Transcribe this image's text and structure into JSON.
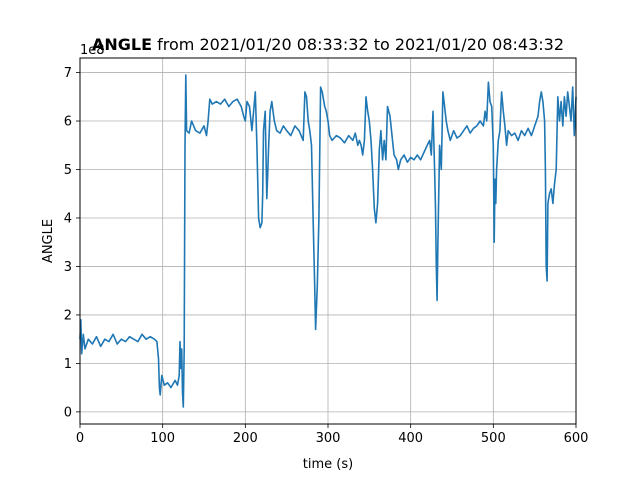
{
  "chart_data": {
    "type": "line",
    "title_bold": "ANGLE",
    "title_rest": " from 2021/01/20 08:33:32 to 2021/01/20 08:43:32",
    "xlabel": "time (s)",
    "ylabel": "ANGLE",
    "y_offset_text": "1e8",
    "xlim": [
      0,
      600
    ],
    "ylim": [
      -0.25,
      7.3
    ],
    "xticks": [
      0,
      100,
      200,
      300,
      400,
      500,
      600
    ],
    "yticks": [
      0,
      1,
      2,
      3,
      4,
      5,
      6,
      7
    ],
    "grid": true,
    "line_color": "#1f77b4",
    "series": [
      {
        "values": [
          [
            0,
            1.5
          ],
          [
            1,
            1.9
          ],
          [
            2,
            1.2
          ],
          [
            4,
            1.6
          ],
          [
            6,
            1.3
          ],
          [
            10,
            1.5
          ],
          [
            15,
            1.4
          ],
          [
            20,
            1.55
          ],
          [
            25,
            1.35
          ],
          [
            30,
            1.5
          ],
          [
            35,
            1.45
          ],
          [
            40,
            1.6
          ],
          [
            45,
            1.4
          ],
          [
            50,
            1.5
          ],
          [
            55,
            1.45
          ],
          [
            60,
            1.55
          ],
          [
            65,
            1.5
          ],
          [
            70,
            1.45
          ],
          [
            75,
            1.6
          ],
          [
            80,
            1.5
          ],
          [
            85,
            1.55
          ],
          [
            90,
            1.5
          ],
          [
            93,
            1.45
          ],
          [
            95,
            1.1
          ],
          [
            96,
            0.5
          ],
          [
            97,
            0.35
          ],
          [
            99,
            0.75
          ],
          [
            102,
            0.55
          ],
          [
            106,
            0.6
          ],
          [
            110,
            0.5
          ],
          [
            115,
            0.65
          ],
          [
            118,
            0.55
          ],
          [
            120,
            0.75
          ],
          [
            121,
            1.45
          ],
          [
            122,
            0.9
          ],
          [
            123,
            1.3
          ],
          [
            124,
            0.4
          ],
          [
            125,
            0.1
          ],
          [
            126,
            1.3
          ],
          [
            127,
            5.5
          ],
          [
            128,
            6.95
          ],
          [
            129,
            5.8
          ],
          [
            132,
            5.75
          ],
          [
            135,
            6.0
          ],
          [
            140,
            5.8
          ],
          [
            145,
            5.75
          ],
          [
            150,
            5.9
          ],
          [
            153,
            5.7
          ],
          [
            155,
            6.0
          ],
          [
            157,
            6.45
          ],
          [
            160,
            6.35
          ],
          [
            165,
            6.4
          ],
          [
            170,
            6.35
          ],
          [
            175,
            6.45
          ],
          [
            180,
            6.3
          ],
          [
            185,
            6.4
          ],
          [
            190,
            6.45
          ],
          [
            195,
            6.3
          ],
          [
            198,
            6.1
          ],
          [
            200,
            6.0
          ],
          [
            202,
            6.4
          ],
          [
            205,
            6.3
          ],
          [
            208,
            5.8
          ],
          [
            210,
            6.2
          ],
          [
            212,
            6.6
          ],
          [
            214,
            5.5
          ],
          [
            216,
            4.0
          ],
          [
            218,
            3.8
          ],
          [
            220,
            3.9
          ],
          [
            221,
            4.5
          ],
          [
            222,
            5.8
          ],
          [
            224,
            6.2
          ],
          [
            226,
            4.4
          ],
          [
            227,
            4.9
          ],
          [
            228,
            5.4
          ],
          [
            230,
            6.2
          ],
          [
            232,
            6.4
          ],
          [
            235,
            6.0
          ],
          [
            238,
            5.8
          ],
          [
            242,
            5.75
          ],
          [
            246,
            5.9
          ],
          [
            250,
            5.8
          ],
          [
            255,
            5.7
          ],
          [
            260,
            5.9
          ],
          [
            265,
            5.8
          ],
          [
            270,
            5.6
          ],
          [
            272,
            6.6
          ],
          [
            274,
            6.5
          ],
          [
            276,
            6.0
          ],
          [
            278,
            5.8
          ],
          [
            280,
            5.5
          ],
          [
            282,
            4.0
          ],
          [
            284,
            2.5
          ],
          [
            285,
            1.7
          ],
          [
            287,
            2.6
          ],
          [
            289,
            4.0
          ],
          [
            291,
            6.7
          ],
          [
            293,
            6.6
          ],
          [
            296,
            6.3
          ],
          [
            298,
            6.2
          ],
          [
            300,
            6.0
          ],
          [
            302,
            5.7
          ],
          [
            305,
            5.6
          ],
          [
            310,
            5.7
          ],
          [
            315,
            5.65
          ],
          [
            320,
            5.55
          ],
          [
            325,
            5.7
          ],
          [
            330,
            5.6
          ],
          [
            333,
            5.75
          ],
          [
            336,
            5.5
          ],
          [
            338,
            5.6
          ],
          [
            340,
            5.5
          ],
          [
            342,
            5.3
          ],
          [
            344,
            5.6
          ],
          [
            346,
            6.5
          ],
          [
            348,
            6.2
          ],
          [
            350,
            6.0
          ],
          [
            352,
            5.6
          ],
          [
            354,
            5.0
          ],
          [
            356,
            4.2
          ],
          [
            358,
            3.9
          ],
          [
            360,
            4.3
          ],
          [
            362,
            5.4
          ],
          [
            364,
            5.8
          ],
          [
            366,
            5.2
          ],
          [
            368,
            5.6
          ],
          [
            370,
            5.2
          ],
          [
            372,
            6.3
          ],
          [
            375,
            6.1
          ],
          [
            378,
            5.6
          ],
          [
            380,
            5.3
          ],
          [
            383,
            5.2
          ],
          [
            385,
            5.0
          ],
          [
            388,
            5.2
          ],
          [
            392,
            5.3
          ],
          [
            396,
            5.15
          ],
          [
            400,
            5.25
          ],
          [
            404,
            5.2
          ],
          [
            408,
            5.3
          ],
          [
            412,
            5.2
          ],
          [
            416,
            5.35
          ],
          [
            420,
            5.5
          ],
          [
            423,
            5.6
          ],
          [
            425,
            5.3
          ],
          [
            427,
            6.2
          ],
          [
            429,
            5.0
          ],
          [
            430,
            4.2
          ],
          [
            431,
            3.0
          ],
          [
            432,
            2.3
          ],
          [
            433,
            3.5
          ],
          [
            435,
            5.5
          ],
          [
            437,
            5.0
          ],
          [
            439,
            6.6
          ],
          [
            441,
            6.3
          ],
          [
            443,
            6.0
          ],
          [
            445,
            5.8
          ],
          [
            448,
            5.6
          ],
          [
            452,
            5.8
          ],
          [
            456,
            5.65
          ],
          [
            460,
            5.7
          ],
          [
            464,
            5.8
          ],
          [
            468,
            5.9
          ],
          [
            472,
            5.75
          ],
          [
            476,
            5.85
          ],
          [
            480,
            5.9
          ],
          [
            484,
            6.0
          ],
          [
            488,
            5.9
          ],
          [
            490,
            6.2
          ],
          [
            492,
            6.0
          ],
          [
            494,
            6.8
          ],
          [
            496,
            6.4
          ],
          [
            498,
            6.3
          ],
          [
            500,
            5.5
          ],
          [
            501,
            3.5
          ],
          [
            502,
            4.8
          ],
          [
            503,
            4.3
          ],
          [
            504,
            5.0
          ],
          [
            506,
            5.6
          ],
          [
            508,
            5.8
          ],
          [
            510,
            6.6
          ],
          [
            512,
            6.2
          ],
          [
            514,
            5.9
          ],
          [
            516,
            5.5
          ],
          [
            518,
            5.8
          ],
          [
            522,
            5.7
          ],
          [
            526,
            5.75
          ],
          [
            530,
            5.6
          ],
          [
            534,
            5.8
          ],
          [
            538,
            5.7
          ],
          [
            542,
            5.85
          ],
          [
            546,
            5.7
          ],
          [
            550,
            5.9
          ],
          [
            554,
            6.1
          ],
          [
            556,
            6.4
          ],
          [
            558,
            6.6
          ],
          [
            560,
            6.4
          ],
          [
            562,
            6.0
          ],
          [
            563,
            5.0
          ],
          [
            564,
            3.0
          ],
          [
            565,
            2.7
          ],
          [
            566,
            4.3
          ],
          [
            568,
            4.5
          ],
          [
            570,
            4.6
          ],
          [
            572,
            4.3
          ],
          [
            574,
            4.7
          ],
          [
            576,
            5.0
          ],
          [
            578,
            6.5
          ],
          [
            580,
            6.0
          ],
          [
            582,
            6.4
          ],
          [
            584,
            5.9
          ],
          [
            586,
            6.5
          ],
          [
            588,
            6.1
          ],
          [
            590,
            6.6
          ],
          [
            592,
            6.3
          ],
          [
            594,
            6.0
          ],
          [
            596,
            6.7
          ],
          [
            598,
            5.7
          ],
          [
            600,
            6.5
          ]
        ]
      }
    ]
  }
}
